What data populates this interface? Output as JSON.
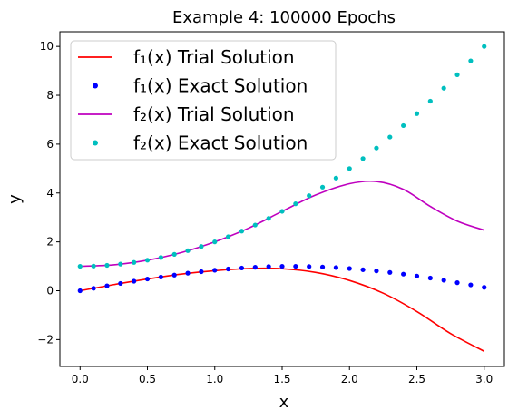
{
  "chart_data": {
    "type": "line",
    "title": "Example 4: 100000 Epochs",
    "xlabel": "x",
    "ylabel": "y",
    "xlim": [
      -0.15,
      3.15
    ],
    "ylim": [
      -3.1,
      10.6
    ],
    "xticks": [
      0.0,
      0.5,
      1.0,
      1.5,
      2.0,
      2.5,
      3.0
    ],
    "xtick_labels": [
      "0.0",
      "0.5",
      "1.0",
      "1.5",
      "2.0",
      "2.5",
      "3.0"
    ],
    "yticks": [
      -2,
      0,
      2,
      4,
      6,
      8,
      10
    ],
    "ytick_labels": [
      "−2",
      "0",
      "2",
      "4",
      "6",
      "8",
      "10"
    ],
    "grid": false,
    "legend_position": "top-left",
    "series": [
      {
        "name": "f₁(x) Trial Solution",
        "style": "line",
        "color": "#ff0000",
        "x": [
          0.0,
          0.25,
          0.5,
          0.75,
          1.0,
          1.25,
          1.5,
          1.75,
          2.0,
          2.25,
          2.5,
          2.75,
          3.0
        ],
        "y": [
          0.0,
          0.25,
          0.48,
          0.68,
          0.82,
          0.91,
          0.9,
          0.75,
          0.42,
          -0.1,
          -0.85,
          -1.75,
          -2.48
        ]
      },
      {
        "name": "f₁(x) Exact Solution",
        "style": "dots",
        "color": "#0000ff",
        "x": [
          0.0,
          0.1,
          0.2,
          0.3,
          0.4,
          0.5,
          0.6,
          0.7,
          0.8,
          0.9,
          1.0,
          1.1,
          1.2,
          1.3,
          1.4,
          1.5,
          1.6,
          1.7,
          1.8,
          1.9,
          2.0,
          2.1,
          2.2,
          2.3,
          2.4,
          2.5,
          2.6,
          2.7,
          2.8,
          2.9,
          3.0
        ],
        "y": [
          0.0,
          0.1,
          0.2,
          0.3,
          0.39,
          0.48,
          0.56,
          0.64,
          0.72,
          0.78,
          0.84,
          0.89,
          0.93,
          0.96,
          0.99,
          1.0,
          1.0,
          0.99,
          0.97,
          0.95,
          0.91,
          0.86,
          0.81,
          0.75,
          0.68,
          0.6,
          0.52,
          0.43,
          0.33,
          0.24,
          0.14
        ]
      },
      {
        "name": "f₂(x) Trial Solution",
        "style": "line",
        "color": "#bf00bf",
        "x": [
          0.0,
          0.25,
          0.5,
          0.75,
          1.0,
          1.25,
          1.5,
          1.75,
          2.0,
          2.2,
          2.4,
          2.6,
          2.8,
          3.0
        ],
        "y": [
          1.0,
          1.06,
          1.25,
          1.56,
          2.0,
          2.56,
          3.25,
          3.92,
          4.38,
          4.47,
          4.15,
          3.45,
          2.85,
          2.48
        ]
      },
      {
        "name": "f₂(x) Exact Solution",
        "style": "dots",
        "color": "#00bfbf",
        "x": [
          0.0,
          0.1,
          0.2,
          0.3,
          0.4,
          0.5,
          0.6,
          0.7,
          0.8,
          0.9,
          1.0,
          1.1,
          1.2,
          1.3,
          1.4,
          1.5,
          1.6,
          1.7,
          1.8,
          1.9,
          2.0,
          2.1,
          2.2,
          2.3,
          2.4,
          2.5,
          2.6,
          2.7,
          2.8,
          2.9,
          3.0
        ],
        "y": [
          1.0,
          1.01,
          1.04,
          1.09,
          1.16,
          1.25,
          1.36,
          1.49,
          1.64,
          1.81,
          2.0,
          2.21,
          2.44,
          2.69,
          2.96,
          3.25,
          3.56,
          3.89,
          4.24,
          4.61,
          5.0,
          5.41,
          5.84,
          6.29,
          6.76,
          7.25,
          7.76,
          8.29,
          8.84,
          9.41,
          10.0
        ]
      }
    ]
  }
}
